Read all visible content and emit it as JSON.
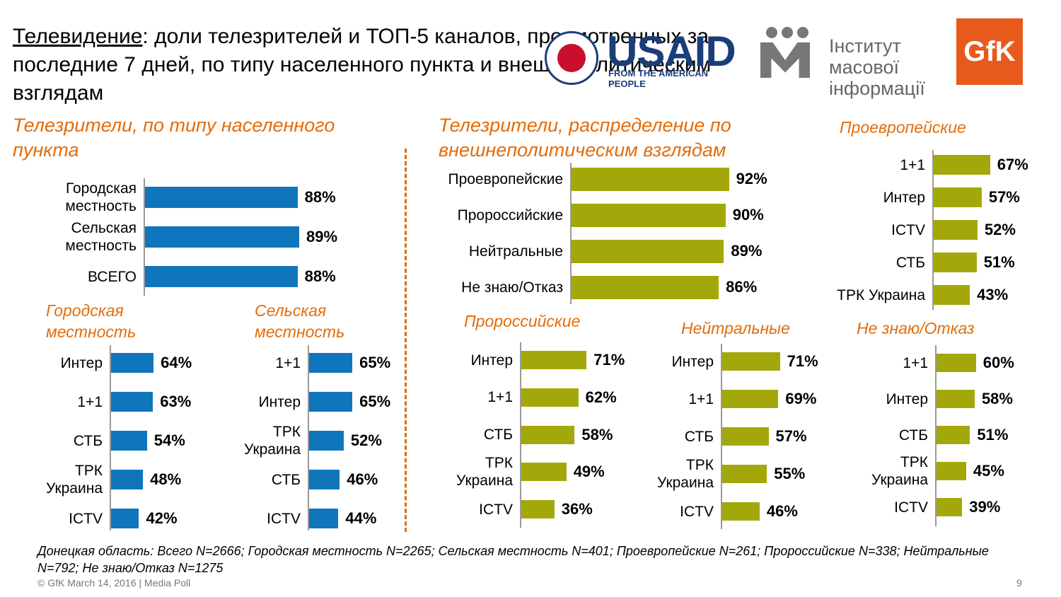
{
  "header": {
    "title_main": "Телевидение",
    "title_rest": ": доли телезрителей и ТОП-5 каналов, просмотренных за последние 7 дней, по типу населенного пункта и внешнеполитическим взглядам"
  },
  "logos": {
    "usaid": "USAID",
    "usaid_tagline": "FROM THE AMERICAN PEOPLE",
    "imi": "Інститут масової інформації",
    "gfk": "GfK"
  },
  "chart_data": [
    {
      "type": "bar",
      "orientation": "horizontal",
      "title": "Телезрители, по типу населенного пункта",
      "color": "#0f75bd",
      "categories": [
        "Городская местность",
        "Сельская местность",
        "ВСЕГО"
      ],
      "values": [
        88,
        89,
        88
      ],
      "value_labels": [
        "88%",
        "89%",
        "88%"
      ]
    },
    {
      "type": "bar",
      "orientation": "horizontal",
      "title": "Городская местность",
      "color": "#0f75bd",
      "categories": [
        "Интер",
        "1+1",
        "СТБ",
        "ТРК Украина",
        "ICTV"
      ],
      "values": [
        64,
        63,
        54,
        48,
        42
      ],
      "value_labels": [
        "64%",
        "63%",
        "54%",
        "48%",
        "42%"
      ]
    },
    {
      "type": "bar",
      "orientation": "horizontal",
      "title": "Сельская местность",
      "color": "#0f75bd",
      "categories": [
        "1+1",
        "Интер",
        "ТРК Украина",
        "СТБ",
        "ICTV"
      ],
      "values": [
        65,
        65,
        52,
        46,
        44
      ],
      "value_labels": [
        "65%",
        "65%",
        "52%",
        "46%",
        "44%"
      ]
    },
    {
      "type": "bar",
      "orientation": "horizontal",
      "title": "Телезрители, распределение по внешнеполитическим взглядам",
      "color": "#a3a80a",
      "categories": [
        "Проевропейские",
        "Пророссийские",
        "Нейтральные",
        "Не знаю/Отказ"
      ],
      "values": [
        92,
        90,
        89,
        86
      ],
      "value_labels": [
        "92%",
        "90%",
        "89%",
        "86%"
      ]
    },
    {
      "type": "bar",
      "orientation": "horizontal",
      "title": "Проевропейские",
      "color": "#a3a80a",
      "categories": [
        "1+1",
        "Интер",
        "ICTV",
        "СТБ",
        "ТРК Украина"
      ],
      "values": [
        67,
        57,
        52,
        51,
        43
      ],
      "value_labels": [
        "67%",
        "57%",
        "52%",
        "51%",
        "43%"
      ]
    },
    {
      "type": "bar",
      "orientation": "horizontal",
      "title": "Пророссийские",
      "color": "#a3a80a",
      "categories": [
        "Интер",
        "1+1",
        "СТБ",
        "ТРК Украина",
        "ICTV"
      ],
      "values": [
        71,
        62,
        58,
        49,
        36
      ],
      "value_labels": [
        "71%",
        "62%",
        "58%",
        "49%",
        "36%"
      ]
    },
    {
      "type": "bar",
      "orientation": "horizontal",
      "title": "Нейтральные",
      "color": "#a3a80a",
      "categories": [
        "Интер",
        "1+1",
        "СТБ",
        "ТРК Украина",
        "ICTV"
      ],
      "values": [
        71,
        69,
        57,
        55,
        46
      ],
      "value_labels": [
        "71%",
        "69%",
        "57%",
        "55%",
        "46%"
      ]
    },
    {
      "type": "bar",
      "orientation": "horizontal",
      "title": "Не знаю/Отказ",
      "color": "#a3a80a",
      "categories": [
        "1+1",
        "Интер",
        "СТБ",
        "ТРК Украина",
        "ICTV"
      ],
      "values": [
        60,
        58,
        51,
        45,
        39
      ],
      "value_labels": [
        "60%",
        "58%",
        "51%",
        "45%",
        "39%"
      ]
    }
  ],
  "footnote": "Донецкая область: Всего N=2666; Городская местность N=2265; Сельская местность N=401; Проевропейские N=261; Пророссийские N=338; Нейтральные N=792; Не знаю/Отказ N=1275",
  "copyright": "© GfK March 14, 2016 | Media Poll",
  "page_number": "9"
}
